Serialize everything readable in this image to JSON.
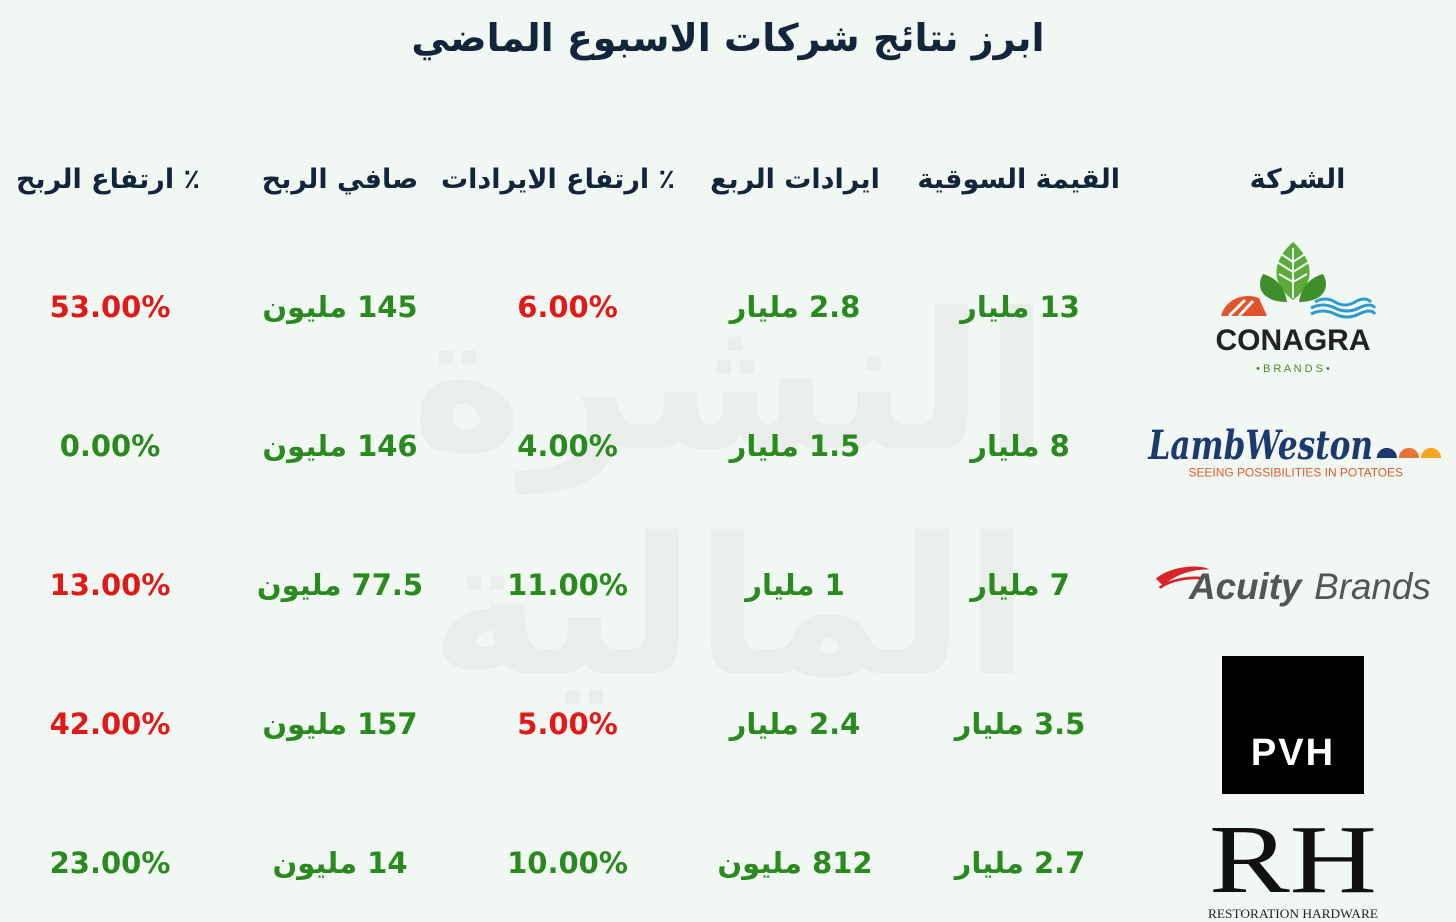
{
  "title": "ابرز نتائج شركات الاسبوع الماضي",
  "watermark": {
    "line1": "النشرة",
    "line2": "المالية"
  },
  "headers": {
    "company": "الشركة",
    "market_cap": "القيمة السوقية",
    "quarter_revenue": "ايرادات الربع",
    "revenue_growth": "٪ ارتفاع الايرادات",
    "net_profit": "صافي الربح",
    "profit_growth": "٪ ارتفاع الربح"
  },
  "colors": {
    "positive": "#2b8a1f",
    "negative": "#e01919",
    "heading": "#12253a"
  },
  "rows": [
    {
      "company_logo": "conagra-logo",
      "logo_text": {
        "main": "CONAGRA",
        "sub": "• B R A N D S •"
      },
      "market_cap": "13 مليار",
      "market_cap_color": "green",
      "quarter_revenue": "2.8 مليار",
      "quarter_revenue_color": "green",
      "revenue_growth": "6.00%",
      "revenue_growth_color": "red",
      "net_profit": "145 مليون",
      "net_profit_color": "green",
      "profit_growth": "53.00%",
      "profit_growth_color": "red"
    },
    {
      "company_logo": "lambweston-logo",
      "logo_text": {
        "main": "LambWeston",
        "sub": "SEEING POSSIBILITIES IN POTATOES"
      },
      "market_cap": "8 مليار",
      "market_cap_color": "green",
      "quarter_revenue": "1.5 مليار",
      "quarter_revenue_color": "green",
      "revenue_growth": "4.00%",
      "revenue_growth_color": "green",
      "net_profit": "146 مليون",
      "net_profit_color": "green",
      "profit_growth": "0.00%",
      "profit_growth_color": "green"
    },
    {
      "company_logo": "acuitybrands-logo",
      "logo_text": {
        "main": "Acuity",
        "main2": "Brands"
      },
      "market_cap": "7 مليار",
      "market_cap_color": "green",
      "quarter_revenue": "1 مليار",
      "quarter_revenue_color": "green",
      "revenue_growth": "11.00%",
      "revenue_growth_color": "green",
      "net_profit": "77.5 مليون",
      "net_profit_color": "green",
      "profit_growth": "13.00%",
      "profit_growth_color": "red"
    },
    {
      "company_logo": "pvh-logo",
      "logo_text": {
        "main": "PVH"
      },
      "market_cap": "3.5 مليار",
      "market_cap_color": "green",
      "quarter_revenue": "2.4 مليار",
      "quarter_revenue_color": "green",
      "revenue_growth": "5.00%",
      "revenue_growth_color": "red",
      "net_profit": "157 مليون",
      "net_profit_color": "green",
      "profit_growth": "42.00%",
      "profit_growth_color": "red"
    },
    {
      "company_logo": "rh-logo",
      "logo_text": {
        "main": "RH",
        "sub": "RESTORATION HARDWARE"
      },
      "market_cap": "2.7 مليار",
      "market_cap_color": "green",
      "quarter_revenue": "812 مليون",
      "quarter_revenue_color": "green",
      "revenue_growth": "10.00%",
      "revenue_growth_color": "green",
      "net_profit": "14 مليون",
      "net_profit_color": "green",
      "profit_growth": "23.00%",
      "profit_growth_color": "green"
    }
  ]
}
